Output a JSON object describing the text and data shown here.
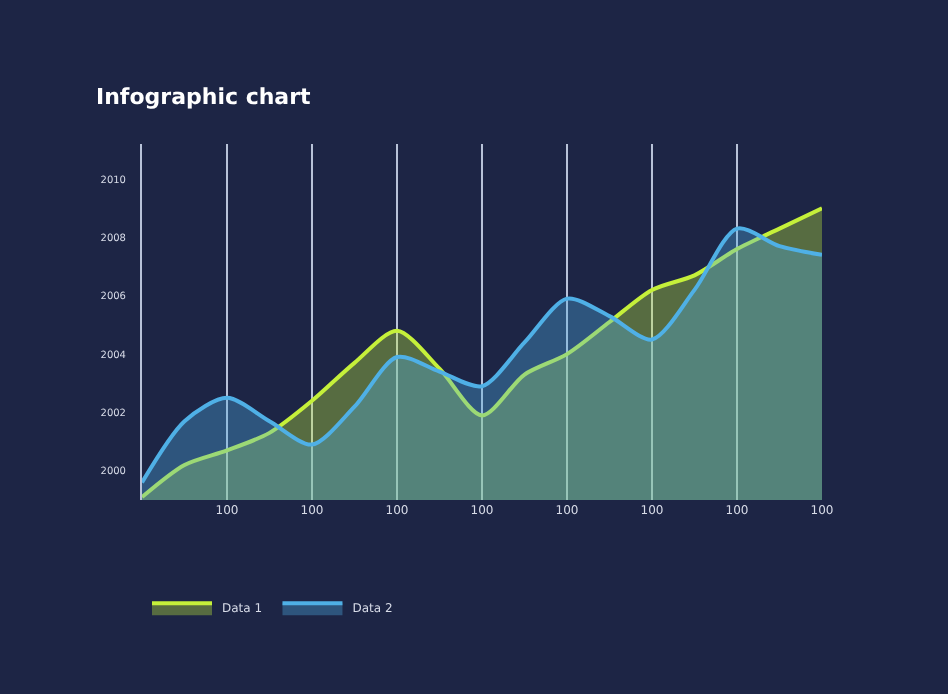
{
  "chart_data": {
    "type": "area",
    "title": "Infographic chart",
    "categories": [
      null,
      null,
      "100",
      null,
      "100",
      null,
      "100",
      null,
      "100",
      null,
      "100",
      null,
      "100",
      null,
      "100",
      null,
      "100"
    ],
    "series": [
      {
        "name": "Data 1",
        "color": "#c5f03a",
        "values": [
          1999.1,
          2000.2,
          2000.7,
          2001.3,
          2002.4,
          2003.7,
          2004.8,
          2003.5,
          2001.9,
          2003.3,
          2004.0,
          2005.1,
          2006.2,
          2006.7,
          2007.6,
          2008.3,
          2009.0
        ]
      },
      {
        "name": "Data 2",
        "color": "#4fb0e6",
        "values": [
          1999.6,
          2001.7,
          2002.5,
          2001.7,
          2000.9,
          2002.2,
          2003.9,
          2003.4,
          2002.9,
          2004.4,
          2005.9,
          2005.3,
          2004.5,
          2006.2,
          2008.3,
          2007.7,
          2007.4
        ]
      }
    ],
    "ylim": [
      1999,
      2011.2
    ],
    "yticks": [
      2000,
      2002,
      2004,
      2006,
      2008,
      2010
    ],
    "grid": "x",
    "legend": "bottom left",
    "marker": "none",
    "line_style": "solid"
  }
}
